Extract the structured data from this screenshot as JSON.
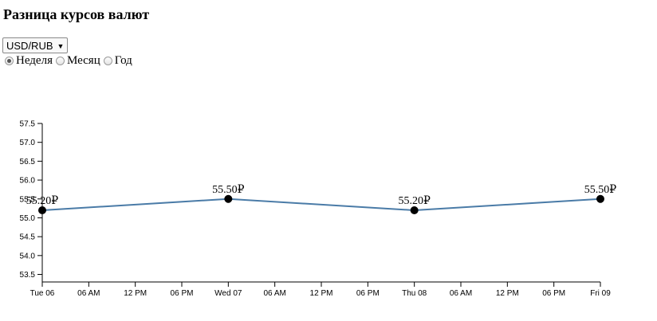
{
  "header": {
    "title": "Разница курсов валют"
  },
  "controls": {
    "pair": "USD/RUB",
    "periods": [
      {
        "label": "Неделя",
        "checked": true
      },
      {
        "label": "Месяц",
        "checked": false
      },
      {
        "label": "Год",
        "checked": false
      }
    ]
  },
  "colors": {
    "line": "#4a7ba7",
    "point": "#000000",
    "axis": "#000000"
  },
  "chart_data": {
    "type": "line",
    "title": "",
    "xlabel": "",
    "ylabel": "",
    "ylim": [
      53.3,
      57.5
    ],
    "y_ticks": [
      "57.5",
      "57.0",
      "56.5",
      "56.0",
      "55.5",
      "55.0",
      "54.5",
      "54.0",
      "53.5"
    ],
    "x_ticks": [
      "Tue 06",
      "06 AM",
      "12 PM",
      "06 PM",
      "Wed 07",
      "06 AM",
      "12 PM",
      "06 PM",
      "Thu 08",
      "06 AM",
      "12 PM",
      "06 PM",
      "Fri 09"
    ],
    "series": [
      {
        "x": [
          "Tue 06",
          "Wed 07",
          "Thu 08",
          "Fri 09"
        ],
        "values": [
          55.2,
          55.5,
          55.2,
          55.5
        ],
        "labels": [
          "55.20₽",
          "55.50₽",
          "55.20₽",
          "55.50₽"
        ]
      }
    ]
  }
}
